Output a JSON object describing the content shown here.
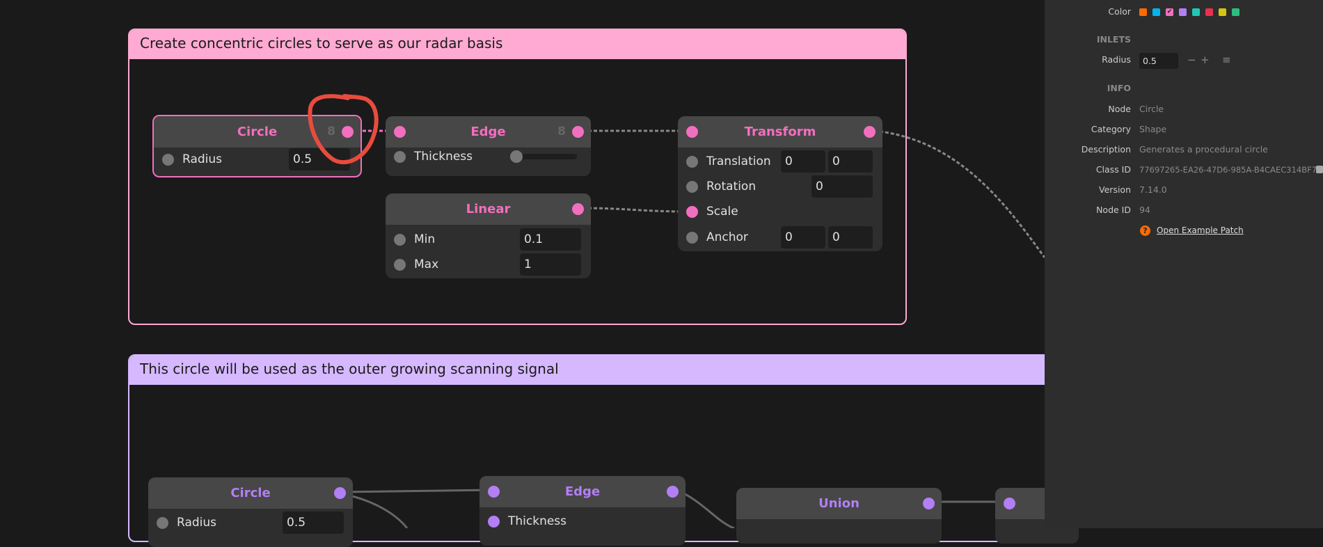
{
  "groups": [
    {
      "title": "Create concentric circles to serve as our radar basis",
      "color": "#ffaad2"
    },
    {
      "title": "This circle will be used as the outer growing scanning signal",
      "color": "#d6b8ff"
    }
  ],
  "nodes": {
    "circle1": {
      "title": "Circle",
      "count": "8",
      "inputs": [
        {
          "label": "Radius",
          "value": "0.5"
        }
      ]
    },
    "edge1": {
      "title": "Edge",
      "count": "8",
      "inputs": [
        {
          "label": "Thickness"
        }
      ]
    },
    "linear": {
      "title": "Linear",
      "inputs": [
        {
          "label": "Min",
          "value": "0.1"
        },
        {
          "label": "Max",
          "value": "1"
        }
      ]
    },
    "transform": {
      "title": "Transform",
      "inputs": [
        {
          "label": "Translation",
          "values": [
            "0",
            "0"
          ]
        },
        {
          "label": "Rotation",
          "value": "0"
        },
        {
          "label": "Scale"
        },
        {
          "label": "Anchor",
          "values": [
            "0",
            "0"
          ]
        }
      ]
    },
    "circle2": {
      "title": "Circle",
      "inputs": [
        {
          "label": "Radius",
          "value": "0.5"
        }
      ]
    },
    "edge2": {
      "title": "Edge",
      "inputs": [
        {
          "label": "Thickness"
        }
      ]
    },
    "union": {
      "title": "Union"
    }
  },
  "colors": {
    "pink": "#f26fbf",
    "purple": "#b27ff5",
    "annotation": "#e84c3d"
  },
  "panel": {
    "color_label": "Color",
    "swatches": [
      "#ff6a00",
      "#00b4f0",
      "#f26fbf",
      "#b27ff5",
      "#1fc9b5",
      "#e8304f",
      "#d4c511",
      "#2bbf7f"
    ],
    "selected_swatch": 2,
    "inlets_heading": "INLETS",
    "radius_label": "Radius",
    "radius_value": "0.5",
    "minus": "−",
    "plus": "+",
    "menu": "≡",
    "info_heading": "INFO",
    "info": [
      {
        "label": "Node",
        "value": "Circle"
      },
      {
        "label": "Category",
        "value": "Shape"
      },
      {
        "label": "Description",
        "value": "Generates a procedural circle"
      },
      {
        "label": "Class ID",
        "value": "77697265-EA26-47D6-985A-B4CAEC314BF7"
      },
      {
        "label": "Version",
        "value": "7.14.0"
      },
      {
        "label": "Node ID",
        "value": "94"
      }
    ],
    "example_link": "Open Example Patch"
  }
}
